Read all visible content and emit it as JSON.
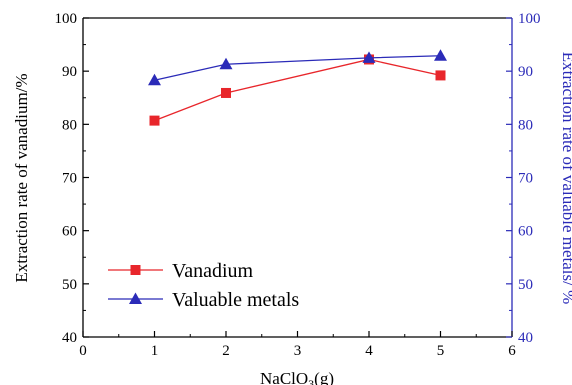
{
  "chart_data": {
    "type": "line",
    "title": "",
    "xlabel": "NaClO3(g)",
    "xlabel_main": "NaClO",
    "xlabel_sub": "3",
    "xlabel_tail": "(g)",
    "ylabel_left": "Extraction rate of vanadium/%",
    "ylabel_right": "Extraction rate of valuable metals/ %",
    "xlim": [
      0,
      6
    ],
    "ylim_left": [
      40,
      100
    ],
    "ylim_right": [
      40,
      100
    ],
    "x_ticks": [
      "0",
      "1",
      "2",
      "3",
      "4",
      "5",
      "6"
    ],
    "y_ticks_left": [
      "40",
      "50",
      "60",
      "70",
      "80",
      "90",
      "100"
    ],
    "y_ticks_right": [
      "40",
      "50",
      "60",
      "70",
      "80",
      "90",
      "100"
    ],
    "legend_position": "bottom-left",
    "grid": false,
    "series": [
      {
        "name": "Vanadium",
        "axis": "left",
        "color": "#e8262b",
        "marker": "square",
        "x": [
          1,
          2,
          4,
          5
        ],
        "values": [
          80.7,
          85.9,
          92.2,
          89.2
        ]
      },
      {
        "name": "Valuable metals",
        "axis": "right",
        "color": "#2b2bb8",
        "marker": "triangle",
        "x": [
          1,
          2,
          4,
          5
        ],
        "values": [
          88.3,
          91.3,
          92.5,
          92.9
        ]
      }
    ]
  }
}
